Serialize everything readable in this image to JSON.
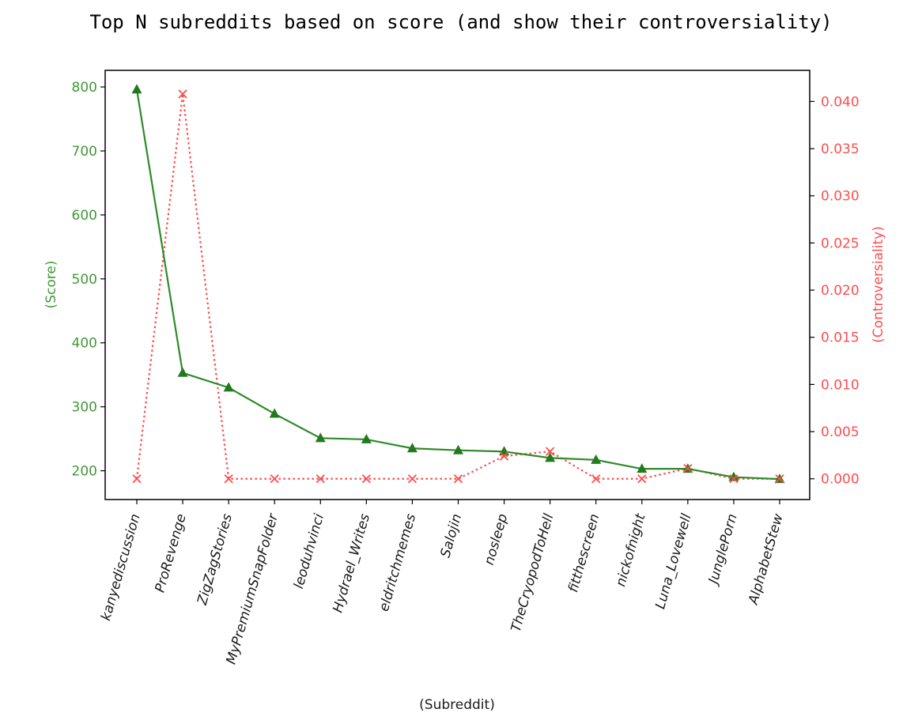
{
  "chart_data": {
    "type": "line",
    "title": "Top N subreddits based on score (and show their controversiality)",
    "xlabel": "(Subreddit)",
    "ylabel_left": "(Score)",
    "ylabel_right": "(Controversiality)",
    "categories": [
      "kanyediscussion",
      "ProRevenge",
      "ZigZagStories",
      "MyPremiumSnapFolder",
      "leoduhvinci",
      "Hydrael_Writes",
      "eldritchmemes",
      "Salojin",
      "nosleep",
      "TheCryopodToHell",
      "fitthescreen",
      "nickofnight",
      "Luna_Lovewell",
      "JunglePorn",
      "AlphabetStew"
    ],
    "left_axis": {
      "ylim": [
        155,
        826
      ],
      "ticks": [
        200,
        300,
        400,
        500,
        600,
        700,
        800
      ],
      "tick_labels": [
        "200",
        "300",
        "400",
        "500",
        "600",
        "700",
        "800"
      ]
    },
    "right_axis": {
      "ylim": [
        -0.0022,
        0.0433
      ],
      "ticks": [
        0.0,
        0.005,
        0.01,
        0.015,
        0.02,
        0.025,
        0.03,
        0.035,
        0.04
      ],
      "tick_labels": [
        "0.000",
        "0.005",
        "0.010",
        "0.015",
        "0.020",
        "0.025",
        "0.030",
        "0.035",
        "0.040"
      ]
    },
    "series": [
      {
        "axis": "left",
        "marker": "triangle",
        "line_style": "solid",
        "color": "#2f8a2a",
        "values": [
          796,
          353,
          330,
          289,
          251,
          249,
          235,
          232,
          230,
          220,
          217,
          203,
          203,
          190,
          187
        ]
      },
      {
        "axis": "right",
        "marker": "x",
        "line_style": "dotted",
        "color": "#ff4d4d",
        "values": [
          0.0,
          0.0408,
          0.0,
          0.0,
          0.0,
          0.0,
          0.0,
          0.0,
          0.0024,
          0.0029,
          0.0,
          0.0,
          0.0011,
          0.0,
          0.0
        ]
      }
    ],
    "grid": false,
    "colors": {
      "left_axis": "#3f9a37",
      "right_axis": "#ff4d4d",
      "frame": "#000000"
    }
  }
}
